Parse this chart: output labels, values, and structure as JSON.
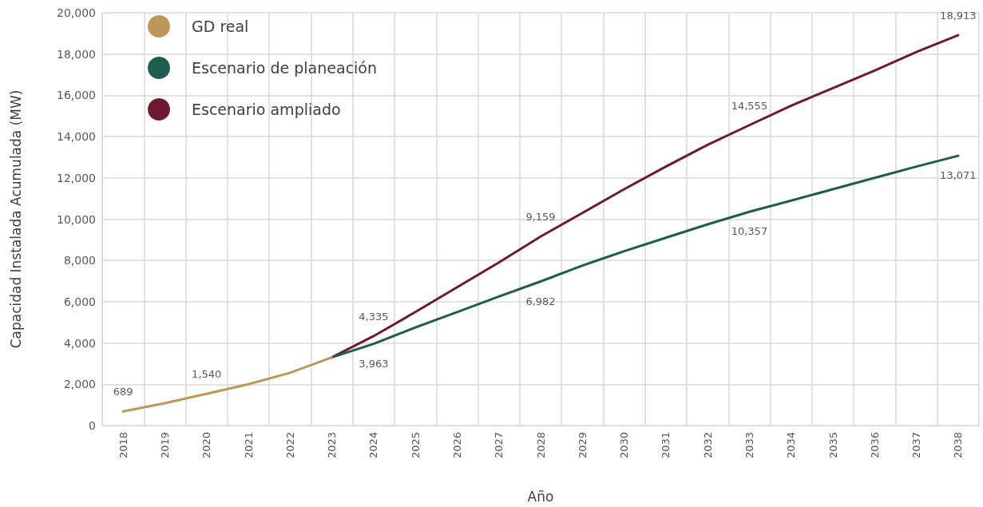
{
  "chart_data": {
    "type": "line",
    "xlabel": "Año",
    "ylabel": "Capacidad Instalada Acumulada (MW)",
    "categories": [
      "2018",
      "2019",
      "2020",
      "2021",
      "2022",
      "2023",
      "2024",
      "2025",
      "2026",
      "2027",
      "2028",
      "2029",
      "2030",
      "2031",
      "2032",
      "2033",
      "2034",
      "2035",
      "2036",
      "2037",
      "2038"
    ],
    "series": [
      {
        "name": "GD real",
        "color": "#bf9659",
        "values": [
          689,
          1080,
          1540,
          2000,
          2560,
          3300,
          null,
          null,
          null,
          null,
          null,
          null,
          null,
          null,
          null,
          null,
          null,
          null,
          null,
          null,
          null
        ],
        "value_labels": [
          "689",
          null,
          "1,540",
          null,
          null,
          null,
          null,
          null,
          null,
          null,
          null,
          null,
          null,
          null,
          null,
          null,
          null,
          null,
          null,
          null,
          null
        ]
      },
      {
        "name": "Escenario de planeación",
        "color": "#1f5c4e",
        "values": [
          null,
          null,
          null,
          null,
          null,
          3300,
          3963,
          4750,
          5500,
          6250,
          6982,
          7750,
          8450,
          9100,
          9750,
          10357,
          10900,
          11450,
          12000,
          12550,
          13071
        ],
        "value_labels": [
          null,
          null,
          null,
          null,
          null,
          null,
          "3,963",
          null,
          null,
          null,
          "6,982",
          null,
          null,
          null,
          null,
          "10,357",
          null,
          null,
          null,
          null,
          "13,071"
        ]
      },
      {
        "name": "Escenario ampliado",
        "color": "#6b1a32",
        "values": [
          null,
          null,
          null,
          null,
          null,
          3300,
          4335,
          5500,
          6700,
          7900,
          9159,
          10300,
          11450,
          12550,
          13600,
          14555,
          15500,
          16350,
          17200,
          18100,
          18913
        ],
        "value_labels": [
          null,
          null,
          null,
          null,
          null,
          null,
          "4,335",
          null,
          null,
          null,
          "9,159",
          null,
          null,
          null,
          null,
          "14,555",
          null,
          null,
          null,
          null,
          "18,913"
        ]
      }
    ],
    "ylim": [
      0,
      20000
    ],
    "yticks": [
      0,
      {
        "value": 2000,
        "label": "2,000"
      },
      {
        "value": 4000,
        "label": "4,000"
      },
      {
        "value": 6000,
        "label": "6,000"
      },
      {
        "value": 8000,
        "label": "8,000"
      },
      {
        "value": 10000,
        "label": "10,000"
      },
      {
        "value": 12000,
        "label": "12,000"
      },
      {
        "value": 14000,
        "label": "14,000"
      },
      {
        "value": 16000,
        "label": "16,000"
      },
      {
        "value": 18000,
        "label": "18,000"
      },
      {
        "value": 20000,
        "label": "20,000"
      }
    ],
    "grid": true,
    "legend": "top left",
    "marker": "none",
    "line_style": "solid"
  }
}
